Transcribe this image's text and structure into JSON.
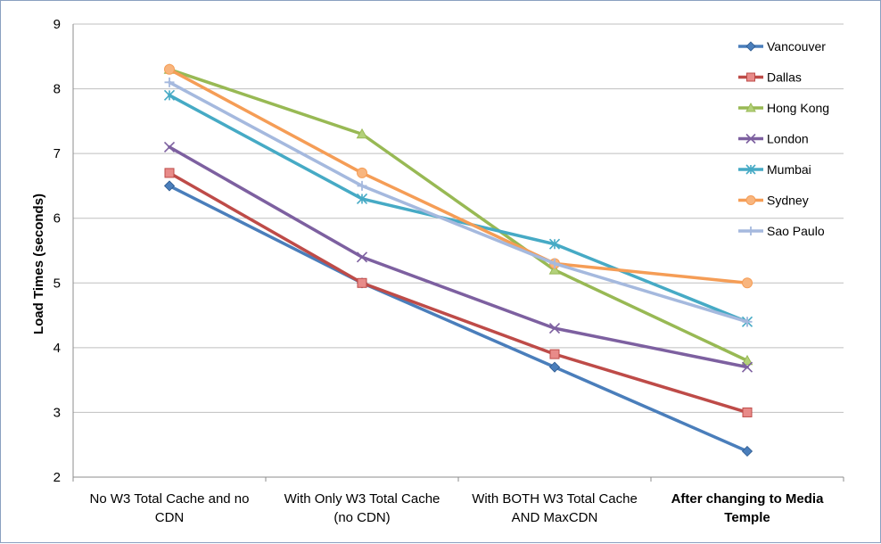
{
  "chart_data": {
    "type": "line",
    "categories": [
      "No W3 Total Cache and no CDN",
      "With Only W3 Total Cache (no CDN)",
      "With BOTH W3 Total Cache AND MaxCDN",
      "After changing to Media Temple"
    ],
    "bold_categories": [
      false,
      false,
      false,
      true
    ],
    "ylabel": "Load Times (seconds)",
    "xlabel": "",
    "title": "",
    "ylim": [
      2,
      9
    ],
    "yticks": [
      2,
      3,
      4,
      5,
      6,
      7,
      8,
      9
    ],
    "grid": true,
    "legend_position": "top-right",
    "series": [
      {
        "name": "Vancouver",
        "color": "#4a7ebb",
        "marker": "diamond",
        "values": [
          6.5,
          5.0,
          3.7,
          2.4
        ]
      },
      {
        "name": "Dallas",
        "color": "#be4b48",
        "marker": "square",
        "values": [
          6.7,
          5.0,
          3.9,
          3.0
        ]
      },
      {
        "name": "Hong Kong",
        "color": "#98b954",
        "marker": "triangle",
        "values": [
          8.3,
          7.3,
          5.2,
          3.8
        ]
      },
      {
        "name": "London",
        "color": "#7d60a0",
        "marker": "x",
        "values": [
          7.1,
          5.4,
          4.3,
          3.7
        ]
      },
      {
        "name": "Mumbai",
        "color": "#46aac5",
        "marker": "star",
        "values": [
          7.9,
          6.3,
          5.6,
          4.4
        ]
      },
      {
        "name": "Sydney",
        "color": "#f59d56",
        "marker": "circle",
        "values": [
          8.3,
          6.7,
          5.3,
          5.0
        ]
      },
      {
        "name": "Sao Paulo",
        "color": "#a5b9de",
        "marker": "plus",
        "values": [
          8.1,
          6.5,
          5.3,
          4.4
        ]
      }
    ]
  }
}
